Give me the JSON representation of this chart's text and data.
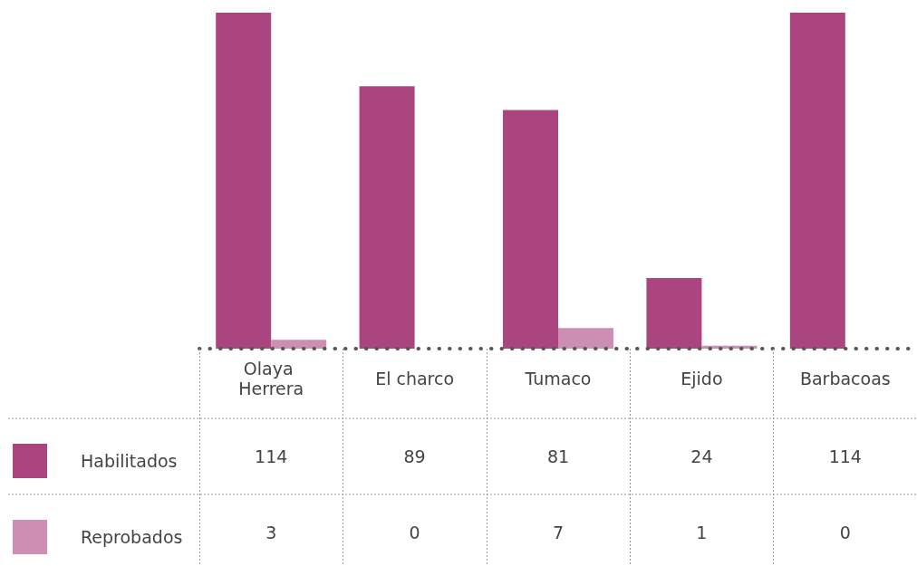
{
  "chart_data": {
    "type": "bar",
    "categories": [
      "Olaya Herrera",
      "El charco",
      "Tumaco",
      "Ejido",
      "Barbacoas"
    ],
    "series": [
      {
        "name": "Habilitados",
        "color": "#ab4580",
        "values": [
          114,
          89,
          81,
          24,
          114
        ]
      },
      {
        "name": "Reprobados",
        "color": "#cc8fb3",
        "values": [
          3,
          0,
          7,
          1,
          0
        ]
      }
    ],
    "data_labels": true,
    "legend": "bottom left",
    "tick_labels": "x"
  }
}
